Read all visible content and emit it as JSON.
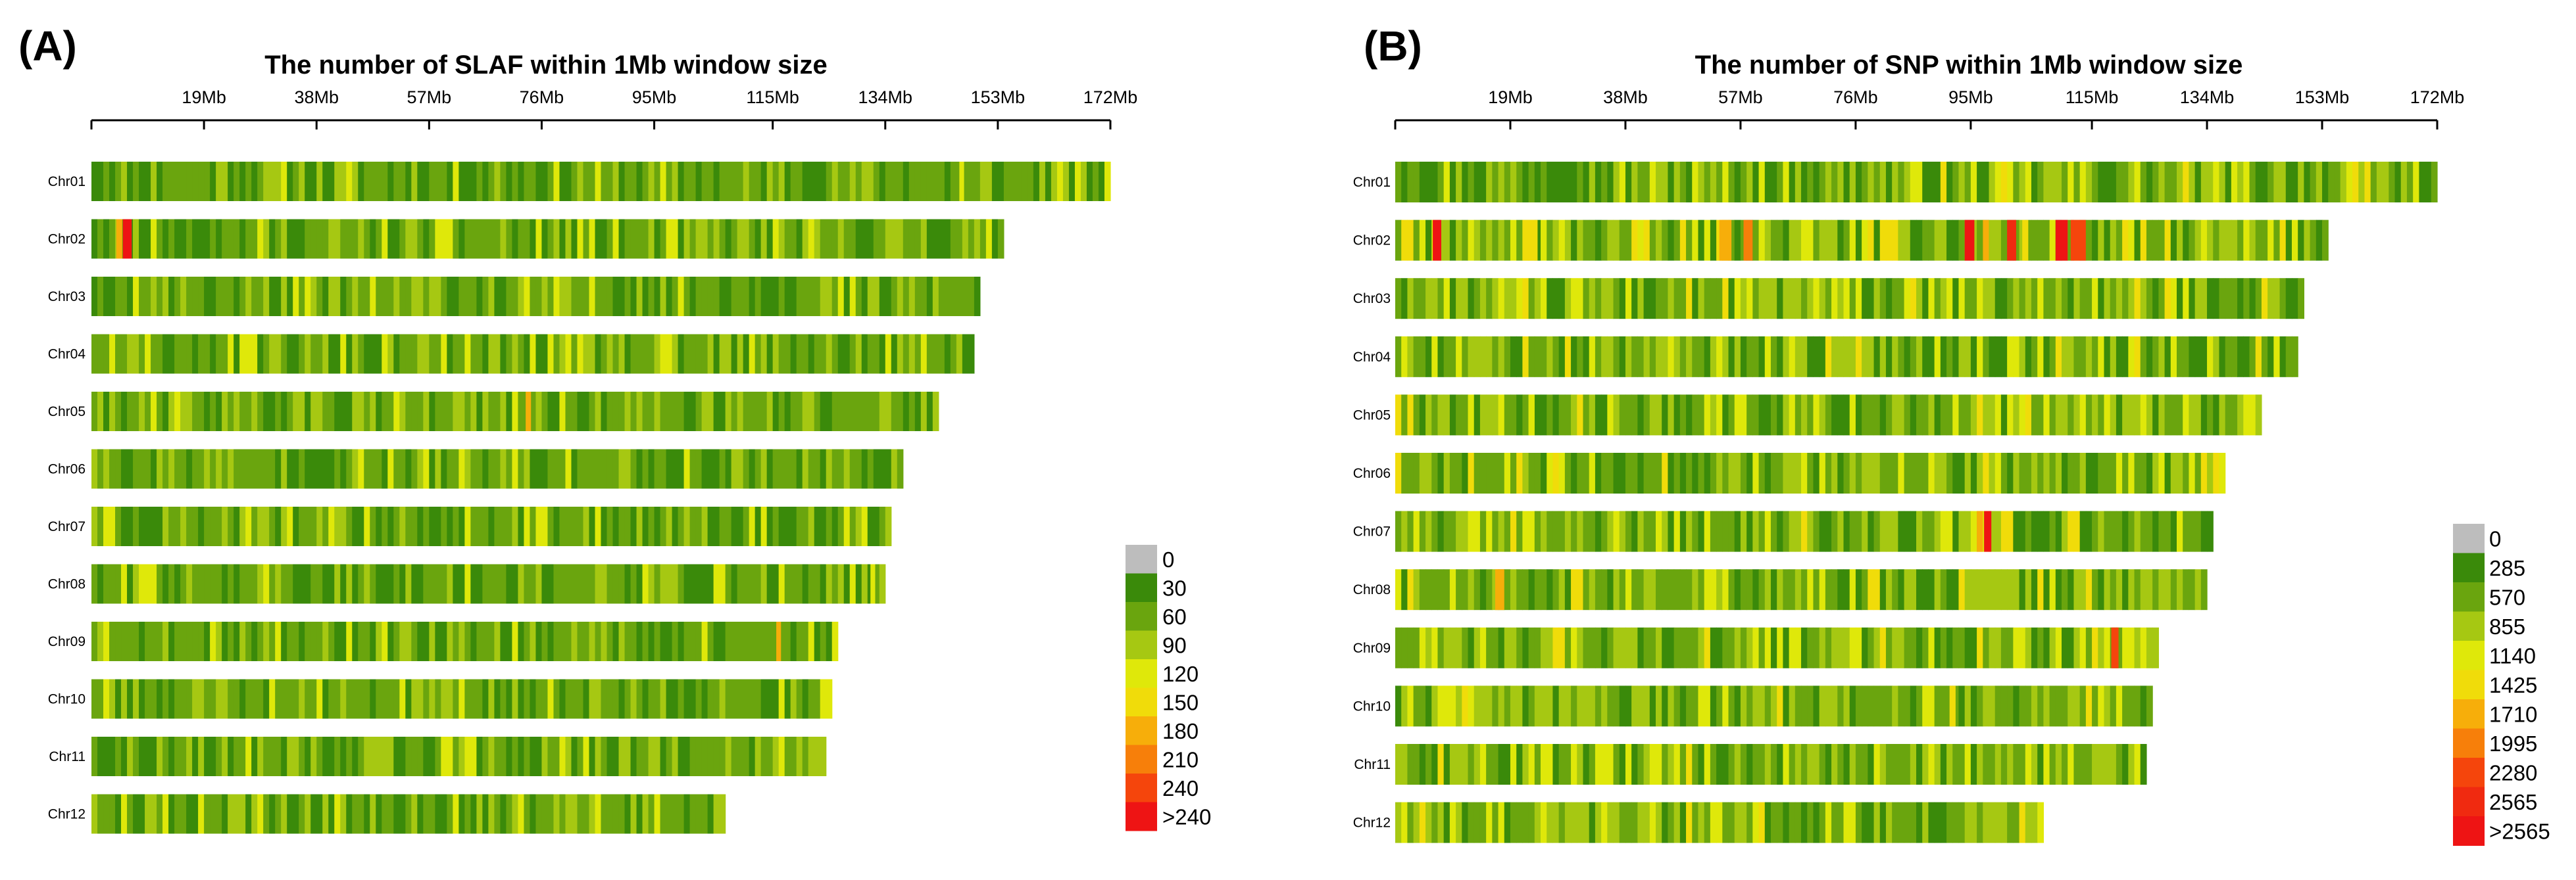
{
  "chart_data": [
    {
      "type": "heatmap",
      "panel_label": "(A)",
      "title": "The number of SLAF within 1Mb window size",
      "x_unit": "Mb",
      "x_range": [
        0,
        172
      ],
      "tick_labels": [
        "19Mb",
        "38Mb",
        "57Mb",
        "76Mb",
        "95Mb",
        "115Mb",
        "134Mb",
        "153Mb",
        "172Mb"
      ],
      "tick_values": [
        19,
        38,
        57,
        76,
        95,
        115,
        134,
        153,
        172
      ],
      "chromosomes": [
        "Chr01",
        "Chr02",
        "Chr03",
        "Chr04",
        "Chr05",
        "Chr06",
        "Chr07",
        "Chr08",
        "Chr09",
        "Chr10",
        "Chr11",
        "Chr12"
      ],
      "chromosome_lengths_mb": [
        172,
        154,
        150,
        149,
        143,
        137,
        135,
        134,
        126,
        125,
        124,
        107
      ],
      "legend": {
        "labels": [
          "0",
          "30",
          "60",
          "90",
          "120",
          "150",
          "180",
          "210",
          "240",
          ">240"
        ],
        "colors": [
          "#bdbdbd",
          "#3a8a0a",
          "#6aa50e",
          "#a6c812",
          "#dfe80a",
          "#f0dc0a",
          "#f7ae0a",
          "#f77f0a",
          "#f5450c",
          "#ee1414"
        ]
      },
      "hotspots": [
        {
          "chromosome": "Chr02",
          "start_mb": 5.3,
          "end_mb": 6.8,
          "level": 9
        },
        {
          "chromosome": "Chr02",
          "start_mb": 4.2,
          "end_mb": 5.2,
          "level": 6
        },
        {
          "chromosome": "Chr05",
          "start_mb": 73.3,
          "end_mb": 74.2,
          "level": 6
        },
        {
          "chromosome": "Chr09",
          "start_mb": 115.6,
          "end_mb": 116.4,
          "level": 6
        },
        {
          "chromosome": "Chr08",
          "start_mb": 131.5,
          "end_mb": 132.3,
          "level": 4
        },
        {
          "chromosome": "Chr01",
          "start_mb": 146.5,
          "end_mb": 147.3,
          "level": 4
        }
      ]
    },
    {
      "type": "heatmap",
      "panel_label": "(B)",
      "title": "The number of SNP within 1Mb window size",
      "x_unit": "Mb",
      "x_range": [
        0,
        172
      ],
      "tick_labels": [
        "19Mb",
        "38Mb",
        "57Mb",
        "76Mb",
        "95Mb",
        "115Mb",
        "134Mb",
        "153Mb",
        "172Mb"
      ],
      "tick_values": [
        19,
        38,
        57,
        76,
        95,
        115,
        134,
        153,
        172
      ],
      "chromosomes": [
        "Chr01",
        "Chr02",
        "Chr03",
        "Chr04",
        "Chr05",
        "Chr06",
        "Chr07",
        "Chr08",
        "Chr09",
        "Chr10",
        "Chr11",
        "Chr12"
      ],
      "chromosome_lengths_mb": [
        172,
        154,
        150,
        149,
        143,
        137,
        135,
        134,
        126,
        125,
        124,
        107
      ],
      "legend": {
        "labels": [
          "0",
          "285",
          "570",
          "855",
          "1140",
          "1425",
          "1710",
          "1995",
          "2280",
          "2565",
          ">2565"
        ],
        "colors": [
          "#bdbdbd",
          "#3a8a0a",
          "#6aa50e",
          "#a6c812",
          "#dfe80a",
          "#f0dc0a",
          "#f7ae0a",
          "#f77f0a",
          "#f5450c",
          "#f02a10",
          "#ee1414"
        ]
      },
      "hotspots": [
        {
          "chromosome": "Chr02",
          "start_mb": 6.2,
          "end_mb": 7.6,
          "level": 10
        },
        {
          "chromosome": "Chr02",
          "start_mb": 21.0,
          "end_mb": 23.5,
          "level": 5
        },
        {
          "chromosome": "Chr02",
          "start_mb": 53.5,
          "end_mb": 55.5,
          "level": 6
        },
        {
          "chromosome": "Chr02",
          "start_mb": 57.5,
          "end_mb": 59.0,
          "level": 7
        },
        {
          "chromosome": "Chr02",
          "start_mb": 94.0,
          "end_mb": 95.6,
          "level": 10
        },
        {
          "chromosome": "Chr02",
          "start_mb": 97.0,
          "end_mb": 98.0,
          "level": 6
        },
        {
          "chromosome": "Chr02",
          "start_mb": 101.0,
          "end_mb": 102.5,
          "level": 9
        },
        {
          "chromosome": "Chr02",
          "start_mb": 103.5,
          "end_mb": 104.5,
          "level": 5
        },
        {
          "chromosome": "Chr02",
          "start_mb": 109.0,
          "end_mb": 111.0,
          "level": 10
        },
        {
          "chromosome": "Chr02",
          "start_mb": 111.5,
          "end_mb": 114.0,
          "level": 8
        },
        {
          "chromosome": "Chr07",
          "start_mb": 97.2,
          "end_mb": 98.4,
          "level": 10
        },
        {
          "chromosome": "Chr07",
          "start_mb": 96.0,
          "end_mb": 97.0,
          "level": 6
        },
        {
          "chromosome": "Chr08",
          "start_mb": 16.5,
          "end_mb": 18.0,
          "level": 6
        },
        {
          "chromosome": "Chr09",
          "start_mb": 118.2,
          "end_mb": 119.4,
          "level": 8
        },
        {
          "chromosome": "Chr10",
          "start_mb": 91.5,
          "end_mb": 92.5,
          "level": 5
        },
        {
          "chromosome": "Chr05",
          "start_mb": 22.0,
          "end_mb": 23.0,
          "level": 4
        }
      ]
    }
  ]
}
